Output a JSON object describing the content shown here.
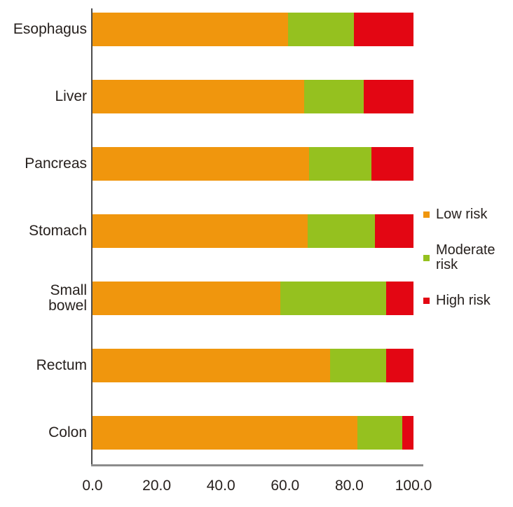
{
  "chart_data": {
    "type": "bar",
    "orientation": "horizontal",
    "stacked": true,
    "unit": "percent",
    "categories": [
      "Esophagus",
      "Liver",
      "Pancreas",
      "Stomach",
      "Small bowel",
      "Rectum",
      "Colon"
    ],
    "series": [
      {
        "name": "Low risk",
        "color": "#F0960D",
        "values": [
          61.0,
          66.0,
          67.5,
          67.0,
          58.5,
          74.0,
          82.5
        ]
      },
      {
        "name": "Moderate risk",
        "color": "#95C11F",
        "values": [
          20.5,
          18.5,
          19.5,
          21.0,
          33.0,
          17.5,
          14.0
        ]
      },
      {
        "name": "High risk",
        "color": "#E30613",
        "values": [
          18.5,
          15.5,
          13.0,
          12.0,
          8.5,
          8.5,
          3.5
        ]
      }
    ],
    "x_ticks": [
      "0.0",
      "20.0",
      "40.0",
      "60.0",
      "80.0",
      "100.0"
    ],
    "xlim": [
      0,
      100
    ],
    "title": "",
    "xlabel": "",
    "ylabel": "",
    "grid": false,
    "legend_position": "right",
    "axis_colors": {
      "x_line": "#8c8c8c",
      "y_line": "#4d4d4d"
    },
    "text_color": "#27211e"
  }
}
